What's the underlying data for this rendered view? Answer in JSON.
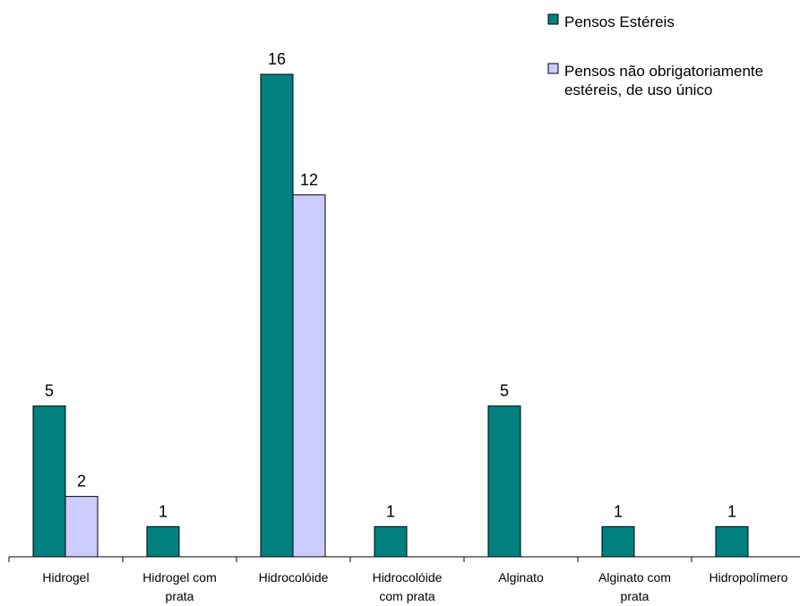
{
  "chart_data": {
    "type": "bar",
    "title": "",
    "xlabel": "",
    "ylabel": "",
    "ylim": [
      0,
      16
    ],
    "grid": false,
    "legend_position": "top-right",
    "categories": [
      [
        "Hidrogel"
      ],
      [
        "Hidrogel com",
        "prata"
      ],
      [
        "Hidrocolóide"
      ],
      [
        "Hidrocolóide",
        "com prata"
      ],
      [
        "Alginato"
      ],
      [
        "Alginato com",
        "prata"
      ],
      [
        "Hidropolímero"
      ]
    ],
    "series": [
      {
        "name": [
          "Pensos Estéreis"
        ],
        "color": "#008080",
        "values": [
          5,
          1,
          16,
          1,
          5,
          1,
          1
        ]
      },
      {
        "name": [
          "Pensos não obrigatoriamente",
          "estéreis, de uso único"
        ],
        "color": "#CCCCFF",
        "values": [
          2,
          null,
          12,
          null,
          null,
          null,
          null
        ]
      }
    ]
  }
}
